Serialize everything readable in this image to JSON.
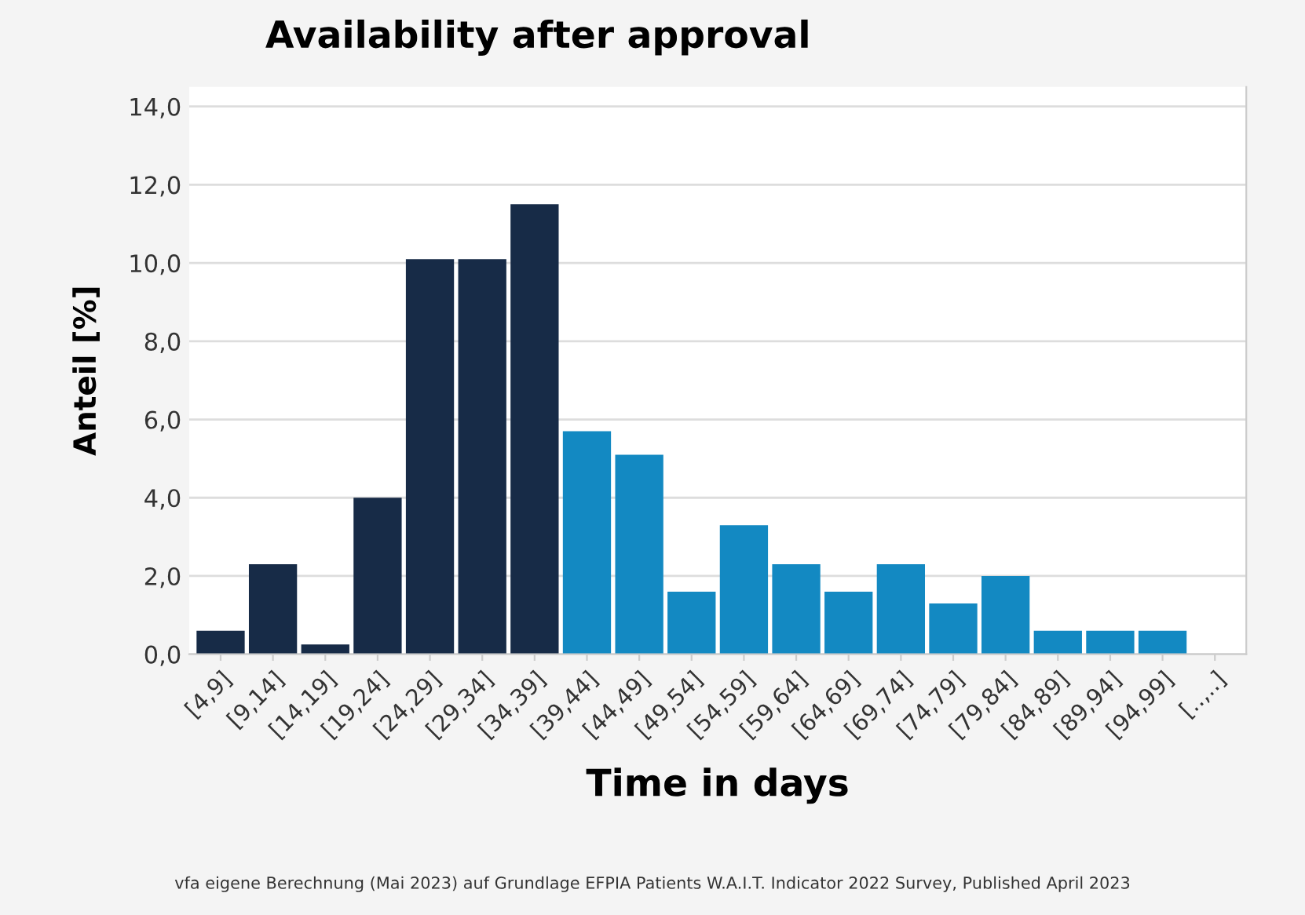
{
  "chart_data": {
    "type": "bar",
    "title": "Availability after approval",
    "xlabel": "Time in days",
    "ylabel": "Anteil [%]",
    "categories": [
      "[4,9]",
      "[9,14]",
      "[14,19]",
      "[19,24]",
      "[24,29]",
      "[29,34]",
      "[34,39]",
      "[39,44]",
      "[44,49]",
      "[49,54]",
      "[54,59]",
      "[59,64]",
      "[64,69]",
      "[69,74]",
      "[74,79]",
      "[79,84]",
      "[84,89]",
      "[89,94]",
      "[94,99]",
      "[..,..]"
    ],
    "values": [
      0.6,
      2.3,
      0.25,
      4.0,
      10.1,
      10.1,
      11.5,
      5.7,
      5.1,
      1.6,
      3.3,
      2.3,
      1.6,
      2.3,
      1.3,
      2.0,
      0.6,
      0.6,
      0.6,
      null
    ],
    "colors": [
      "#172b47",
      "#172b47",
      "#172b47",
      "#172b47",
      "#172b47",
      "#172b47",
      "#172b47",
      "#1389c2",
      "#1389c2",
      "#1389c2",
      "#1389c2",
      "#1389c2",
      "#1389c2",
      "#1389c2",
      "#1389c2",
      "#1389c2",
      "#1389c2",
      "#1389c2",
      "#1389c2",
      "#1389c2"
    ],
    "ylim": [
      0,
      14.5
    ],
    "yticks": [
      {
        "value": 0,
        "label": "0,0"
      },
      {
        "value": 2,
        "label": "2,0"
      },
      {
        "value": 4,
        "label": "4,0"
      },
      {
        "value": 6,
        "label": "6,0"
      },
      {
        "value": 8,
        "label": "8,0"
      },
      {
        "value": 10,
        "label": "10,0"
      },
      {
        "value": 12,
        "label": "12,0"
      },
      {
        "value": 14,
        "label": "14,0"
      }
    ],
    "grid": "y",
    "annotations": [
      "vfa eigene Berechnung (Mai 2023) auf Grundlage EFPIA Patients W.A.I.T. Indicator 2022 Survey, Published April 2023"
    ]
  }
}
